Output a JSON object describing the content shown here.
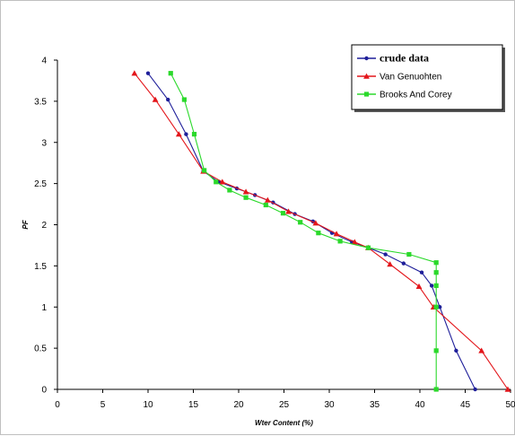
{
  "chart_data": {
    "type": "line",
    "title": "",
    "xlabel": "Wter Content (%)",
    "ylabel": "PF",
    "xlim": [
      0,
      50
    ],
    "ylim": [
      0,
      4
    ],
    "x_ticks": [
      "0",
      "5",
      "10",
      "15",
      "20",
      "25",
      "30",
      "35",
      "40",
      "45",
      "50"
    ],
    "y_ticks": [
      "0",
      "0.5",
      "1",
      "1.5",
      "2",
      "2.5",
      "3",
      "3.5",
      "4"
    ],
    "grid": false,
    "legend_position": "top-right",
    "series": [
      {
        "name": "crude data",
        "color": "#1f1f9a",
        "marker": "circle",
        "points": [
          [
            10,
            3.84
          ],
          [
            12.2,
            3.52
          ],
          [
            14.2,
            3.1
          ],
          [
            16.1,
            2.65
          ],
          [
            17.8,
            2.52
          ],
          [
            19.8,
            2.44
          ],
          [
            21.8,
            2.36
          ],
          [
            23.8,
            2.27
          ],
          [
            26.2,
            2.13
          ],
          [
            28.2,
            2.04
          ],
          [
            30.3,
            1.9
          ],
          [
            32.5,
            1.79
          ],
          [
            34.3,
            1.72
          ],
          [
            36.2,
            1.64
          ],
          [
            38.2,
            1.53
          ],
          [
            40.2,
            1.42
          ],
          [
            41.3,
            1.26
          ],
          [
            42.2,
            1.0
          ],
          [
            44.0,
            0.47
          ],
          [
            46.1,
            0.0
          ]
        ]
      },
      {
        "name": "Van Genuohten",
        "color": "#e3161b",
        "marker": "triangle",
        "points": [
          [
            8.5,
            3.84
          ],
          [
            10.8,
            3.52
          ],
          [
            13.4,
            3.1
          ],
          [
            16.1,
            2.65
          ],
          [
            18.2,
            2.52
          ],
          [
            20.8,
            2.4
          ],
          [
            23.2,
            2.3
          ],
          [
            25.5,
            2.16
          ],
          [
            28.5,
            2.02
          ],
          [
            30.8,
            1.89
          ],
          [
            32.8,
            1.79
          ],
          [
            34.3,
            1.72
          ],
          [
            36.7,
            1.52
          ],
          [
            39.9,
            1.25
          ],
          [
            41.5,
            1.0
          ],
          [
            46.8,
            0.47
          ],
          [
            49.7,
            0.0
          ]
        ]
      },
      {
        "name": "Brooks And Corey",
        "color": "#2bd92b",
        "marker": "square",
        "points": [
          [
            12.5,
            3.84
          ],
          [
            14.0,
            3.52
          ],
          [
            15.1,
            3.1
          ],
          [
            16.2,
            2.66
          ],
          [
            17.5,
            2.52
          ],
          [
            19.0,
            2.42
          ],
          [
            20.8,
            2.33
          ],
          [
            23.0,
            2.24
          ],
          [
            24.9,
            2.14
          ],
          [
            26.8,
            2.03
          ],
          [
            28.8,
            1.9
          ],
          [
            31.2,
            1.8
          ],
          [
            34.3,
            1.72
          ],
          [
            38.8,
            1.64
          ],
          [
            41.8,
            1.54
          ],
          [
            41.8,
            1.42
          ],
          [
            41.8,
            1.26
          ],
          [
            41.8,
            1.0
          ],
          [
            41.8,
            0.47
          ],
          [
            41.8,
            0.0
          ]
        ]
      }
    ]
  }
}
